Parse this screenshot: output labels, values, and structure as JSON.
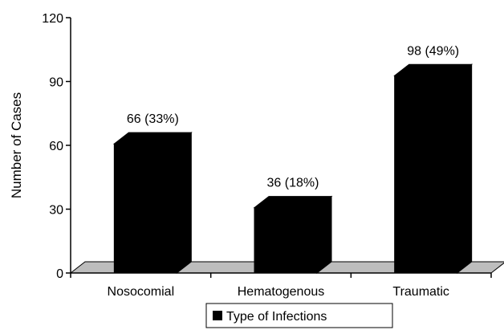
{
  "chart_data": {
    "type": "bar",
    "categories": [
      "Nosocomial",
      "Hematogenous",
      "Traumatic"
    ],
    "values": [
      66,
      36,
      98
    ],
    "data_labels": [
      "66 (33%)",
      "36 (18%)",
      "98 (49%)"
    ],
    "title": "",
    "xlabel": "",
    "ylabel": "Number of Cases",
    "ylim": [
      0,
      120
    ],
    "yticks": [
      "0",
      "30",
      "60",
      "90",
      "120"
    ],
    "legend": {
      "placement": "bottom",
      "entries": [
        {
          "name": "Type of Infections",
          "color": "#000000"
        }
      ]
    },
    "grid": false,
    "bar_color": "#000000",
    "floor_color": "#bdbdbd",
    "style": "3d"
  }
}
